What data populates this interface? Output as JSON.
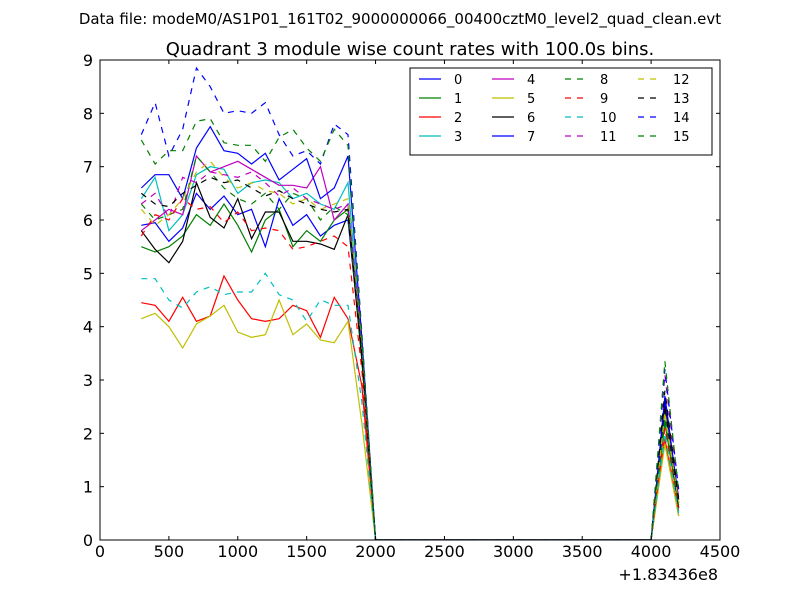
{
  "chart_data": {
    "type": "line",
    "suptitle": "Data file: modeM0/AS1P01_161T02_9000000066_00400cztM0_level2_quad_clean.evt",
    "title": "Quadrant 3 module wise count rates with 100.0s bins.",
    "xlabel": "",
    "ylabel": "",
    "xlim": [
      0,
      4500
    ],
    "ylim": [
      0,
      9
    ],
    "x_offset_label": "+1.83436e8",
    "xticks": [
      0,
      500,
      1000,
      1500,
      2000,
      2500,
      3000,
      3500,
      4000,
      4500
    ],
    "xtick_labels": [
      "0",
      "500",
      "1000",
      "1500",
      "2000",
      "2500",
      "3000",
      "3500",
      "4000",
      "4500"
    ],
    "yticks": [
      0,
      1,
      2,
      3,
      4,
      5,
      6,
      7,
      8,
      9
    ],
    "ytick_labels": [
      "0",
      "1",
      "2",
      "3",
      "4",
      "5",
      "6",
      "7",
      "8",
      "9"
    ],
    "legend_position": "top-right",
    "legend_columns": 4,
    "x": [
      300,
      400,
      500,
      600,
      700,
      800,
      900,
      1000,
      1100,
      1200,
      1300,
      1400,
      1500,
      1600,
      1700,
      1800,
      1900,
      2000,
      2100,
      2200,
      2300,
      2400,
      2500,
      2600,
      2700,
      2800,
      2900,
      3000,
      3100,
      3200,
      3300,
      3400,
      3500,
      3600,
      3700,
      3800,
      3900,
      4000,
      4100,
      4200
    ],
    "series": [
      {
        "name": "0",
        "color": "#0000ff",
        "dash": "solid",
        "values": [
          5.9,
          5.95,
          5.6,
          5.85,
          6.5,
          6.2,
          6.45,
          6.1,
          6.2,
          5.5,
          6.4,
          5.9,
          6.1,
          5.7,
          5.9,
          6.0,
          3.5,
          0,
          0,
          0,
          0,
          0,
          0,
          0,
          0,
          0,
          0,
          0,
          0,
          0,
          0,
          0,
          0,
          0,
          0,
          0,
          0,
          0,
          2.6,
          0.7
        ]
      },
      {
        "name": "1",
        "color": "#008000",
        "dash": "solid",
        "values": [
          5.5,
          5.4,
          5.5,
          5.7,
          6.1,
          5.9,
          6.3,
          5.9,
          5.4,
          6.0,
          6.2,
          5.5,
          5.8,
          5.6,
          6.0,
          6.2,
          3.4,
          0,
          0,
          0,
          0,
          0,
          0,
          0,
          0,
          0,
          0,
          0,
          0,
          0,
          0,
          0,
          0,
          0,
          0,
          0,
          0,
          0,
          2.2,
          0.6
        ]
      },
      {
        "name": "2",
        "color": "#ff0000",
        "dash": "solid",
        "values": [
          4.45,
          4.4,
          4.1,
          4.55,
          4.1,
          4.2,
          4.95,
          4.5,
          4.15,
          4.1,
          4.15,
          4.4,
          4.3,
          3.8,
          4.55,
          4.15,
          2.9,
          0,
          0,
          0,
          0,
          0,
          0,
          0,
          0,
          0,
          0,
          0,
          0,
          0,
          0,
          0,
          0,
          0,
          0,
          0,
          0,
          0,
          1.9,
          0.45
        ]
      },
      {
        "name": "3",
        "color": "#00bfbf",
        "dash": "solid",
        "values": [
          6.4,
          6.8,
          5.8,
          6.1,
          6.85,
          7.0,
          6.95,
          6.5,
          6.7,
          6.75,
          6.7,
          6.4,
          6.5,
          6.3,
          6.2,
          6.7,
          3.6,
          0,
          0,
          0,
          0,
          0,
          0,
          0,
          0,
          0,
          0,
          0,
          0,
          0,
          0,
          0,
          0,
          0,
          0,
          0,
          0,
          0,
          2.4,
          0.7
        ]
      },
      {
        "name": "4",
        "color": "#bf00bf",
        "dash": "solid",
        "values": [
          5.8,
          6.0,
          6.2,
          6.1,
          7.2,
          6.9,
          7.0,
          7.1,
          6.95,
          6.8,
          6.65,
          6.65,
          6.6,
          7.0,
          6.0,
          6.3,
          3.7,
          0,
          0,
          0,
          0,
          0,
          0,
          0,
          0,
          0,
          0,
          0,
          0,
          0,
          0,
          0,
          0,
          0,
          0,
          0,
          0,
          0,
          2.5,
          0.8
        ]
      },
      {
        "name": "5",
        "color": "#bfbf00",
        "dash": "solid",
        "values": [
          4.15,
          4.25,
          4.0,
          3.6,
          4.05,
          4.2,
          4.4,
          3.9,
          3.8,
          3.85,
          4.5,
          3.85,
          4.05,
          3.75,
          3.7,
          4.1,
          2.2,
          0,
          0,
          0,
          0,
          0,
          0,
          0,
          0,
          0,
          0,
          0,
          0,
          0,
          0,
          0,
          0,
          0,
          0,
          0,
          0,
          0,
          1.8,
          0.45
        ]
      },
      {
        "name": "6",
        "color": "#000000",
        "dash": "solid",
        "values": [
          5.8,
          5.45,
          5.2,
          5.6,
          6.7,
          6.05,
          5.85,
          6.4,
          5.65,
          6.15,
          6.15,
          5.6,
          5.6,
          5.55,
          5.45,
          6.1,
          3.4,
          0,
          0,
          0,
          0,
          0,
          0,
          0,
          0,
          0,
          0,
          0,
          0,
          0,
          0,
          0,
          0,
          0,
          0,
          0,
          0,
          0,
          2.5,
          0.6
        ]
      },
      {
        "name": "7",
        "color": "#0000ff",
        "dash": "solid",
        "values": [
          6.6,
          6.85,
          6.85,
          6.4,
          7.35,
          7.75,
          7.3,
          7.25,
          7.05,
          7.25,
          6.75,
          6.95,
          7.15,
          6.4,
          6.6,
          7.2,
          3.8,
          0,
          0,
          0,
          0,
          0,
          0,
          0,
          0,
          0,
          0,
          0,
          0,
          0,
          0,
          0,
          0,
          0,
          0,
          0,
          0,
          0,
          2.7,
          0.75
        ]
      },
      {
        "name": "8",
        "color": "#008000",
        "dash": "dashed",
        "values": [
          6.3,
          6.0,
          6.1,
          6.2,
          7.2,
          6.9,
          6.6,
          6.4,
          6.3,
          6.5,
          6.2,
          6.5,
          6.4,
          6.0,
          6.25,
          6.1,
          3.6,
          0,
          0,
          0,
          0,
          0,
          0,
          0,
          0,
          0,
          0,
          0,
          0,
          0,
          0,
          0,
          0,
          0,
          0,
          0,
          0,
          0,
          2.3,
          0.65
        ]
      },
      {
        "name": "9",
        "color": "#ff0000",
        "dash": "dashed",
        "values": [
          5.7,
          6.1,
          6.0,
          6.4,
          6.2,
          6.25,
          5.95,
          6.15,
          5.8,
          5.85,
          5.8,
          5.45,
          5.5,
          5.6,
          5.7,
          5.5,
          3.2,
          0,
          0,
          0,
          0,
          0,
          0,
          0,
          0,
          0,
          0,
          0,
          0,
          0,
          0,
          0,
          0,
          0,
          0,
          0,
          0,
          0,
          2.1,
          0.55
        ]
      },
      {
        "name": "10",
        "color": "#00bfbf",
        "dash": "dashed",
        "values": [
          4.9,
          4.9,
          4.5,
          4.35,
          4.65,
          4.75,
          4.6,
          4.65,
          4.65,
          5.0,
          4.6,
          4.5,
          4.1,
          4.5,
          4.4,
          4.4,
          2.6,
          0,
          0,
          0,
          0,
          0,
          0,
          0,
          0,
          0,
          0,
          0,
          0,
          0,
          0,
          0,
          0,
          0,
          0,
          0,
          0,
          0,
          2.0,
          0.5
        ]
      },
      {
        "name": "11",
        "color": "#bf00bf",
        "dash": "dashed",
        "values": [
          6.3,
          6.5,
          6.05,
          6.8,
          6.7,
          6.9,
          6.85,
          6.8,
          6.9,
          6.7,
          6.45,
          6.6,
          6.4,
          6.3,
          6.2,
          6.3,
          3.7,
          0,
          0,
          0,
          0,
          0,
          0,
          0,
          0,
          0,
          0,
          0,
          0,
          0,
          0,
          0,
          0,
          0,
          0,
          0,
          0,
          0,
          3.1,
          0.85
        ]
      },
      {
        "name": "12",
        "color": "#bfbf00",
        "dash": "dashed",
        "values": [
          6.2,
          5.9,
          6.1,
          6.4,
          6.9,
          7.1,
          6.8,
          6.6,
          6.7,
          6.55,
          6.5,
          6.3,
          6.4,
          6.2,
          6.3,
          6.4,
          3.6,
          0,
          0,
          0,
          0,
          0,
          0,
          0,
          0,
          0,
          0,
          0,
          0,
          0,
          0,
          0,
          0,
          0,
          0,
          0,
          0,
          0,
          2.4,
          0.7
        ]
      },
      {
        "name": "13",
        "color": "#000000",
        "dash": "dashed",
        "values": [
          6.5,
          6.3,
          6.25,
          6.5,
          6.65,
          6.8,
          6.7,
          6.75,
          6.6,
          6.45,
          6.55,
          6.4,
          6.3,
          6.2,
          6.15,
          6.2,
          3.5,
          0,
          0,
          0,
          0,
          0,
          0,
          0,
          0,
          0,
          0,
          0,
          0,
          0,
          0,
          0,
          0,
          0,
          0,
          0,
          0,
          0,
          2.8,
          0.75
        ]
      },
      {
        "name": "14",
        "color": "#0000ff",
        "dash": "dashed",
        "values": [
          7.6,
          8.2,
          7.2,
          7.7,
          8.85,
          8.5,
          8.0,
          8.05,
          8.0,
          8.2,
          7.6,
          7.2,
          7.3,
          7.05,
          7.8,
          7.6,
          3.9,
          0,
          0,
          0,
          0,
          0,
          0,
          0,
          0,
          0,
          0,
          0,
          0,
          0,
          0,
          0,
          0,
          0,
          0,
          0,
          0,
          0,
          3.2,
          0.95
        ]
      },
      {
        "name": "15",
        "color": "#008000",
        "dash": "dashed",
        "values": [
          7.5,
          7.05,
          7.3,
          7.3,
          7.85,
          7.9,
          7.45,
          7.4,
          7.4,
          7.1,
          7.55,
          7.7,
          7.35,
          7.1,
          7.7,
          7.4,
          3.8,
          0,
          0,
          0,
          0,
          0,
          0,
          0,
          0,
          0,
          0,
          0,
          0,
          0,
          0,
          0,
          0,
          0,
          0,
          0,
          0,
          0,
          3.35,
          0.9
        ]
      }
    ]
  }
}
